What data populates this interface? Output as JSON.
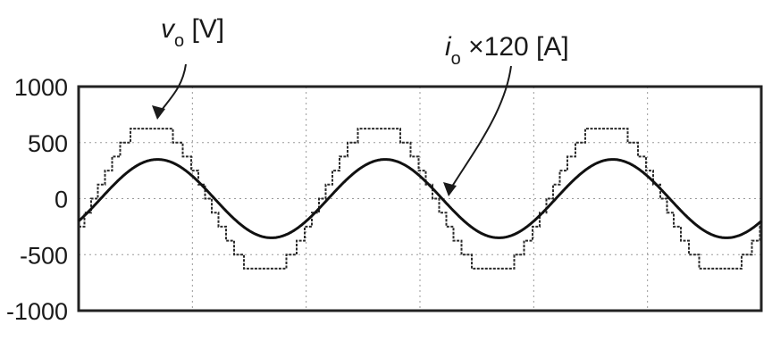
{
  "chart_data": {
    "type": "line",
    "title": "",
    "xlabel": "",
    "ylabel": "",
    "ylim": [
      -1000,
      1000
    ],
    "y_ticks": [
      "1000",
      "500",
      "0",
      "-500",
      "-1000"
    ],
    "grid": true,
    "cycles_shown": 3,
    "x_unit": "fundamental cycles",
    "x_start_phase_deg": 335,
    "series": [
      {
        "key": "vo",
        "waveform": "multilevel staircase",
        "amplitude": 675,
        "step_height": 125,
        "color": "#2a2a2a"
      },
      {
        "key": "io",
        "waveform": "sinusoid",
        "amplitude": 350,
        "phase_lag_deg": 10,
        "color": "#111111"
      }
    ],
    "annotations": [
      {
        "series": "vo",
        "symbol": "v",
        "subscript": "o",
        "suffix": " [V]"
      },
      {
        "series": "io",
        "symbol": "i",
        "subscript": "o",
        "suffix": " ×120 [A]"
      }
    ]
  }
}
